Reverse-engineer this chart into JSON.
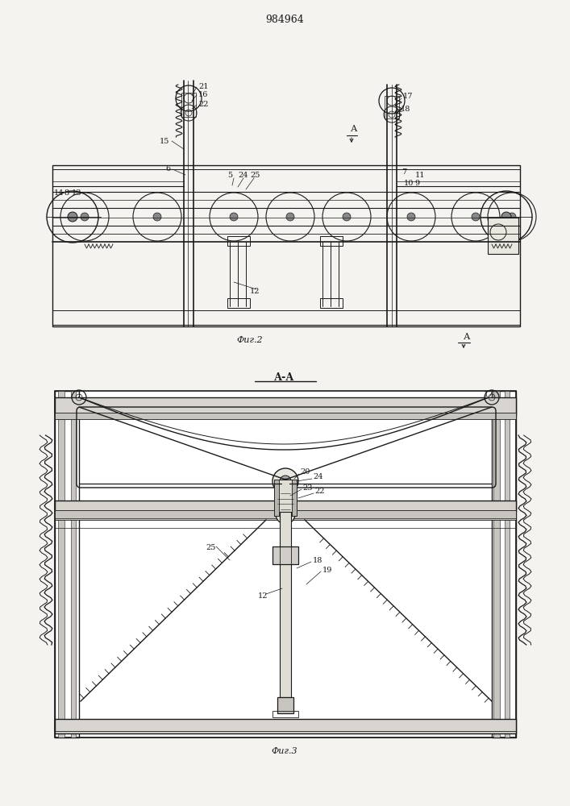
{
  "bg_color": "#f5f3ef",
  "line_color": "#1a1a1a",
  "title": "984964",
  "fig2_caption": "Фиг.2",
  "fig3_caption": "Фиг.3",
  "section_label": "А-А"
}
